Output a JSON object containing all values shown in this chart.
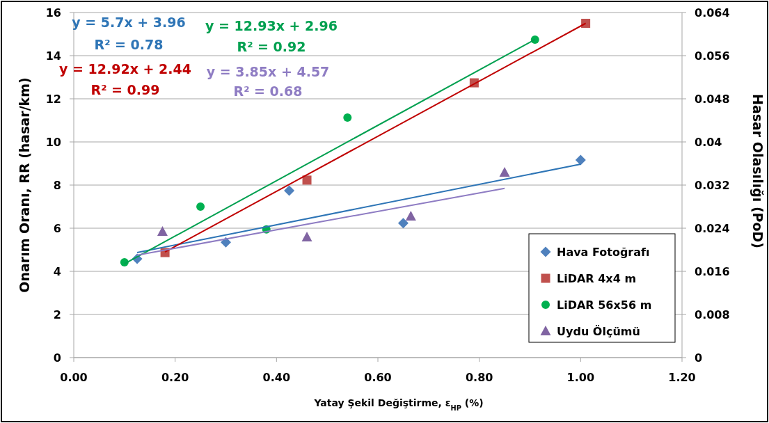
{
  "chart_data": {
    "type": "scatter",
    "xlabel": "Yatay Şekil Değiştirme, ε$_{HP}$ (%)",
    "ylabel": "Onarım Oranı, RR (hasar/km)",
    "y2label": "Hasar Olasılığı (PoD)",
    "xlim": [
      0,
      1.2
    ],
    "xticks": [
      {
        "value": 0,
        "label": "0.00"
      },
      {
        "value": 0.2,
        "label": "0.20"
      },
      {
        "value": 0.4,
        "label": "0.40"
      },
      {
        "value": 0.6,
        "label": "0.60"
      },
      {
        "value": 0.8,
        "label": "0.80"
      },
      {
        "value": 1,
        "label": "1.00"
      },
      {
        "value": 1.2,
        "label": "1.20"
      }
    ],
    "ylim": [
      0,
      16
    ],
    "yticks": [
      0,
      2,
      4,
      6,
      8,
      10,
      12,
      14,
      16
    ],
    "y2lim": [
      0,
      0.064
    ],
    "y2ticks": [
      0,
      0.008,
      0.016,
      0.024,
      0.032,
      0.04,
      0.048,
      0.056,
      0.064
    ],
    "grid": "y",
    "legend": "bottom right",
    "series": [
      {
        "name": "Hava Fotoğrafı",
        "color": "#4f81bd",
        "marker": "diamond",
        "x": [
          0.125,
          0.3,
          0.425,
          0.65,
          1.0
        ],
        "values": [
          4.58,
          5.35,
          7.74,
          6.23,
          9.16
        ]
      },
      {
        "name": "LiDAR 4x4 m",
        "color": "#c0504d",
        "marker": "square",
        "x": [
          0.18,
          0.46,
          0.79,
          1.01
        ],
        "values": [
          4.87,
          8.23,
          12.74,
          15.5
        ]
      },
      {
        "name": "LiDAR 56x56 m",
        "color": "#00b050",
        "marker": "circle",
        "x": [
          0.1,
          0.25,
          0.38,
          0.54,
          0.91
        ],
        "values": [
          4.42,
          7.0,
          5.94,
          11.13,
          14.74
        ]
      },
      {
        "name": "Uydu Ölçümü",
        "color": "#8064a2",
        "marker": "triangle",
        "x": [
          0.175,
          0.46,
          0.665,
          0.85
        ],
        "values": [
          5.84,
          5.58,
          6.55,
          8.58
        ]
      },
      {
        "type": "line",
        "color": "#2e75b6",
        "marker": "none",
        "x": [
          0.125,
          1.0
        ],
        "values": [
          4.87,
          8.97
        ]
      },
      {
        "type": "line",
        "color": "#00a050",
        "marker": "none",
        "x": [
          0.1,
          0.91
        ],
        "values": [
          4.35,
          14.75
        ]
      },
      {
        "type": "line",
        "color": "#c00000",
        "marker": "none",
        "x": [
          0.18,
          1.01
        ],
        "values": [
          4.9,
          15.5
        ]
      },
      {
        "type": "line",
        "color": "#8e7cc3",
        "marker": "none",
        "x": [
          0.125,
          0.85
        ],
        "values": [
          4.75,
          7.85
        ]
      }
    ],
    "annotations": [
      "y = 5.7x + 3.96",
      "R² = 0.78",
      "y = 12.93x + 2.96",
      "R² = 0.92",
      "y = 12.92x + 2.44",
      "R² = 0.99",
      "y = 3.85x + 4.57",
      "R² = 0.68"
    ]
  }
}
